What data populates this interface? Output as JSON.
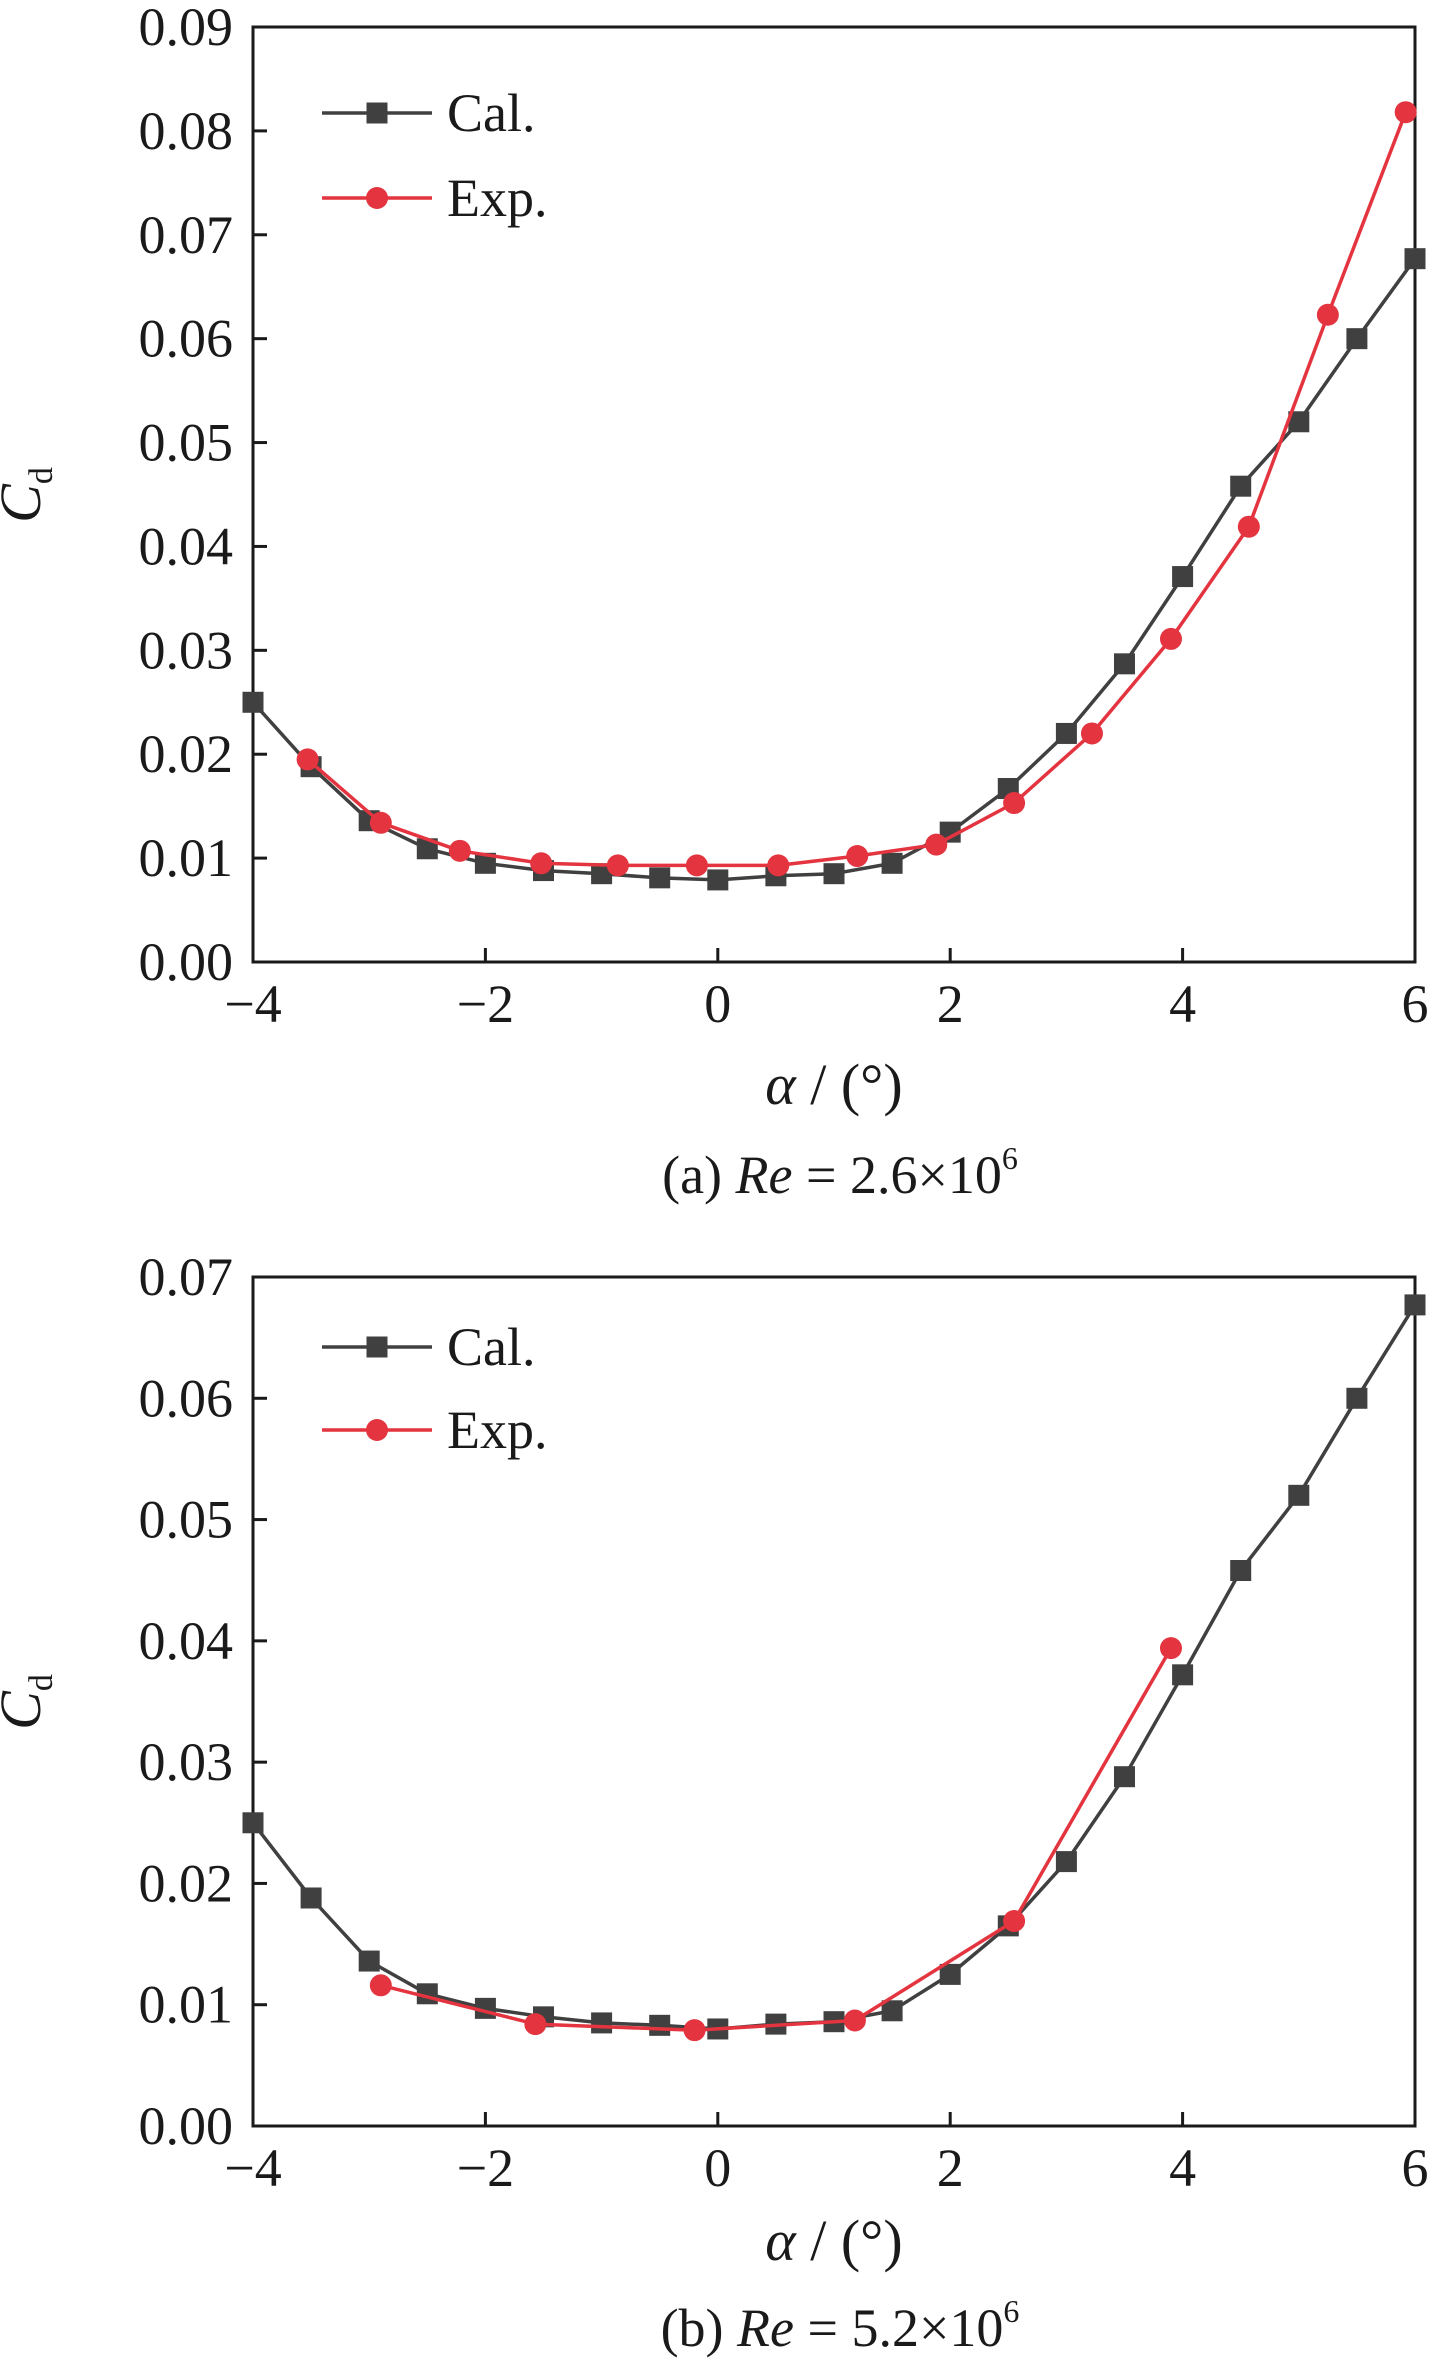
{
  "chart_data": [
    {
      "type": "line",
      "panel": "a",
      "caption": {
        "prefix": "(a) ",
        "italic": "Re",
        "mid": " = 2.6×10",
        "sup": "6"
      },
      "xlabel": {
        "symbol": "α",
        "rest": " / (°)"
      },
      "ylabel": {
        "main": "C",
        "sub": "d"
      },
      "xlim": [
        -4,
        6
      ],
      "ylim": [
        0,
        0.09
      ],
      "xticks": [
        -4,
        -2,
        0,
        2,
        4,
        6
      ],
      "xtick_labels": [
        "−4",
        "−2",
        "0",
        "2",
        "4",
        "6"
      ],
      "yticks": [
        0,
        0.01,
        0.02,
        0.03,
        0.04,
        0.05,
        0.06,
        0.07,
        0.08,
        0.09
      ],
      "ytick_labels": [
        "0.00",
        "0.01",
        "0.02",
        "0.03",
        "0.04",
        "0.05",
        "0.06",
        "0.07",
        "0.08",
        "0.09"
      ],
      "legend_position": "top-left",
      "series": [
        {
          "name": "Cal.",
          "marker": "square",
          "color": "#404040",
          "x": [
            -4,
            -3.5,
            -3,
            -2.5,
            -2,
            -1.5,
            -1,
            -0.5,
            0,
            0.5,
            1,
            1.5,
            2,
            2.5,
            3,
            3.5,
            4,
            4.5,
            5,
            5.5,
            6
          ],
          "y": [
            0.025,
            0.0188,
            0.0136,
            0.0109,
            0.0095,
            0.0088,
            0.0085,
            0.0081,
            0.0079,
            0.0083,
            0.0085,
            0.0095,
            0.0125,
            0.0167,
            0.022,
            0.0287,
            0.0371,
            0.0458,
            0.052,
            0.06,
            0.0677
          ]
        },
        {
          "name": "Exp.",
          "marker": "circle",
          "color": "#e3343f",
          "x": [
            -3.53,
            -2.9,
            -2.22,
            -1.52,
            -0.86,
            -0.18,
            0.52,
            1.2,
            1.88,
            2.55,
            3.22,
            3.9,
            4.57,
            5.25,
            5.92
          ],
          "y": [
            0.0195,
            0.0134,
            0.0107,
            0.0095,
            0.0093,
            0.0093,
            0.0093,
            0.0102,
            0.0113,
            0.0153,
            0.022,
            0.0311,
            0.0419,
            0.0623,
            0.0818
          ]
        }
      ]
    },
    {
      "type": "line",
      "panel": "b",
      "caption": {
        "prefix": "(b) ",
        "italic": "Re",
        "mid": " = 5.2×10",
        "sup": "6"
      },
      "xlabel": {
        "symbol": "α",
        "rest": " / (°)"
      },
      "ylabel": {
        "main": "C",
        "sub": "d"
      },
      "xlim": [
        -4,
        6
      ],
      "ylim": [
        0,
        0.07
      ],
      "xticks": [
        -4,
        -2,
        0,
        2,
        4,
        6
      ],
      "xtick_labels": [
        "−4",
        "−2",
        "0",
        "2",
        "4",
        "6"
      ],
      "yticks": [
        0,
        0.01,
        0.02,
        0.03,
        0.04,
        0.05,
        0.06,
        0.07
      ],
      "ytick_labels": [
        "0.00",
        "0.01",
        "0.02",
        "0.03",
        "0.04",
        "0.05",
        "0.06",
        "0.07"
      ],
      "legend_position": "top-left",
      "series": [
        {
          "name": "Cal.",
          "marker": "square",
          "color": "#404040",
          "x": [
            -4,
            -3.5,
            -3,
            -2.5,
            -2,
            -1.5,
            -1,
            -0.5,
            0,
            0.5,
            1,
            1.5,
            2,
            2.5,
            3,
            3.5,
            4,
            4.5,
            5,
            5.5,
            6
          ],
          "y": [
            0.025,
            0.0188,
            0.0136,
            0.0109,
            0.0097,
            0.009,
            0.0085,
            0.0083,
            0.008,
            0.0084,
            0.0086,
            0.0095,
            0.0125,
            0.0165,
            0.0218,
            0.0288,
            0.0372,
            0.0458,
            0.052,
            0.06,
            0.0677
          ]
        },
        {
          "name": "Exp.",
          "marker": "circle",
          "color": "#e3343f",
          "x": [
            -2.9,
            -1.57,
            -0.2,
            1.18,
            2.55,
            3.9
          ],
          "y": [
            0.0116,
            0.0084,
            0.0079,
            0.0087,
            0.0169,
            0.0394
          ]
        }
      ]
    }
  ]
}
